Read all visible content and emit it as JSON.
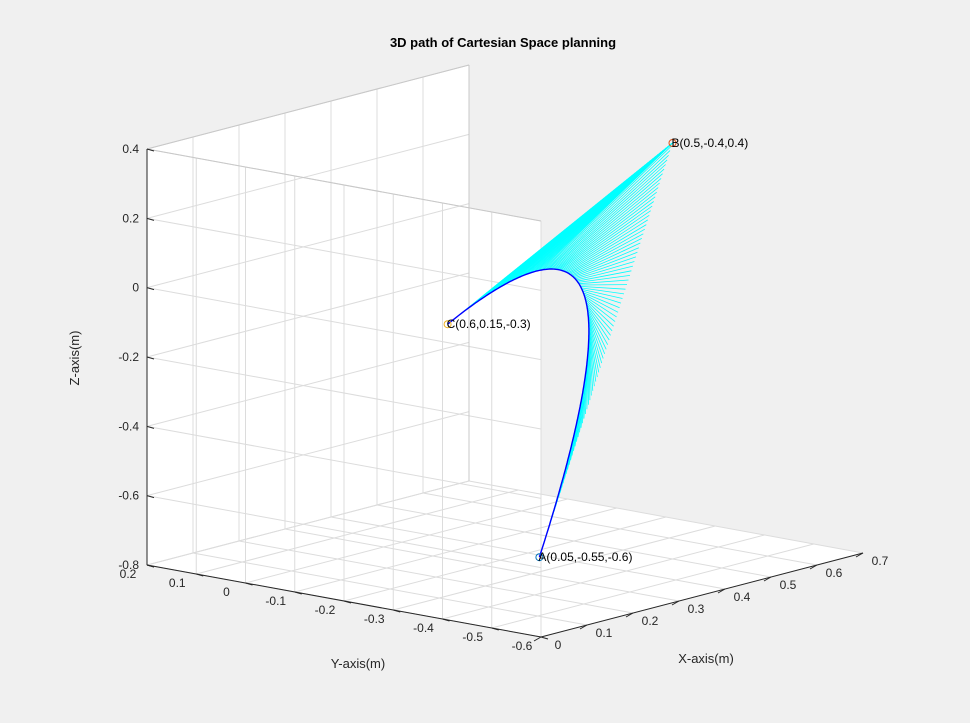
{
  "chart_data": {
    "type": "line",
    "title": "3D path of Cartesian Space planning",
    "xlabel": "X-axis(m)",
    "ylabel": "Y-axis(m)",
    "zlabel": "Z-axis(m)",
    "xlim": [
      0,
      0.7
    ],
    "ylim": [
      -0.6,
      0.2
    ],
    "zlim": [
      -0.8,
      0.4
    ],
    "xticks": [
      "0",
      "0.1",
      "0.2",
      "0.3",
      "0.4",
      "0.5",
      "0.6",
      "0.7"
    ],
    "yticks": [
      "0.2",
      "0.1",
      "0",
      "-0.1",
      "-0.2",
      "-0.3",
      "-0.4",
      "-0.5",
      "-0.6"
    ],
    "zticks": [
      "0.4",
      "0.2",
      "0",
      "-0.2",
      "-0.4",
      "-0.6",
      "-0.8"
    ],
    "grid": true,
    "points": [
      {
        "label": "A(0.05,-0.55,-0.6)",
        "x": 0.05,
        "y": -0.55,
        "z": -0.6,
        "marker": "circle",
        "color": "#0072bd"
      },
      {
        "label": "B(0.5,-0.4,0.4)",
        "x": 0.5,
        "y": -0.4,
        "z": 0.4,
        "marker": "circle",
        "color": "#d95319"
      },
      {
        "label": "C(0.6,0.15,-0.3)",
        "x": 0.6,
        "y": 0.15,
        "z": -0.3,
        "marker": "circle",
        "color": "#edb120"
      }
    ],
    "series": [
      {
        "color": "#0000ff"
      },
      {
        "color": "#00ffff"
      }
    ]
  }
}
